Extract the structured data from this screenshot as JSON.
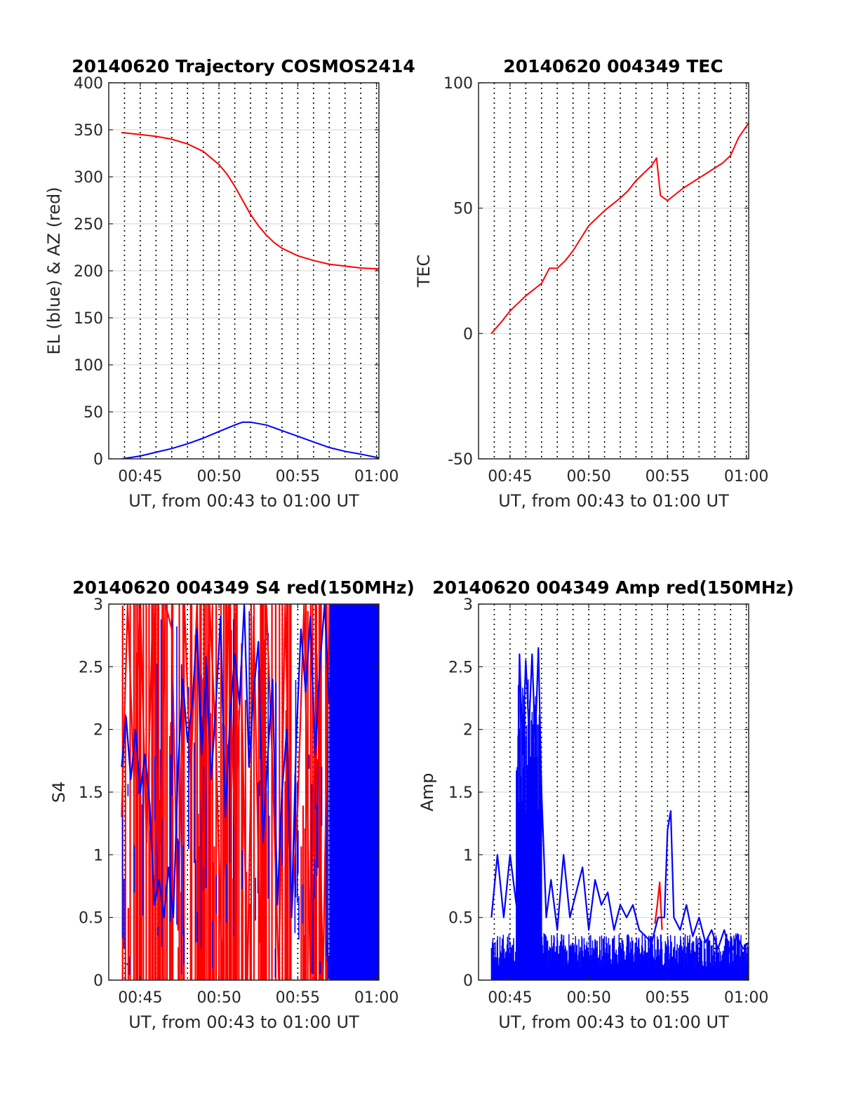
{
  "chart_data": [
    {
      "type": "line",
      "title": "20140620 Trajectory COSMOS2414",
      "xlabel": "UT, from 00:43 to 01:00 UT",
      "ylabel": "EL (blue) & AZ (red)",
      "xlim": [
        0.0,
        17.15
      ],
      "ylim": [
        0,
        400
      ],
      "xticks": [
        2,
        7,
        12,
        17
      ],
      "xtick_labels": [
        "00:45",
        "00:50",
        "00:55",
        "01:00"
      ],
      "yticks": [
        0,
        50,
        100,
        150,
        200,
        250,
        300,
        350,
        400
      ],
      "ytick_labels": [
        "0",
        "50",
        "100",
        "150",
        "200",
        "250",
        "300",
        "350",
        "400"
      ],
      "grid": "dotted vertical lines each minute, light horizontal lines at y ticks",
      "series": [
        {
          "color": "#ff0000",
          "x": [
            0.82,
            2,
            3,
            4,
            5,
            6,
            7,
            7.5,
            8,
            8.5,
            9,
            9.5,
            10,
            10.5,
            11,
            12,
            13,
            14,
            15,
            16,
            17.15
          ],
          "y": [
            347,
            345,
            343,
            340,
            335,
            327,
            313,
            303,
            290,
            275,
            260,
            248,
            238,
            230,
            224,
            216,
            211,
            207,
            205,
            203,
            202
          ]
        },
        {
          "color": "#0000ff",
          "x": [
            0.82,
            2,
            3,
            4,
            5,
            6,
            7,
            8,
            8.5,
            9,
            10,
            11,
            12,
            13,
            14,
            15,
            16,
            17.15
          ],
          "y": [
            0,
            3,
            7,
            11,
            16,
            22,
            29,
            36,
            39,
            39,
            36,
            30,
            24,
            18,
            12,
            8,
            5,
            1
          ]
        }
      ]
    },
    {
      "type": "line",
      "title": "20140620 004349 TEC",
      "xlabel": "UT, from 00:43 to 01:00 UT",
      "ylabel": "TEC",
      "xlim": [
        0.0,
        17.15
      ],
      "ylim": [
        -50,
        100
      ],
      "xticks": [
        2,
        7,
        12,
        17
      ],
      "xtick_labels": [
        "00:45",
        "00:50",
        "00:55",
        "01:00"
      ],
      "yticks": [
        -50,
        0,
        50,
        100
      ],
      "ytick_labels": [
        "-50",
        "0",
        "50",
        "100"
      ],
      "grid": "dotted vertical lines each minute, light horizontal lines at y ticks",
      "series": [
        {
          "color": "#ff0000",
          "x": [
            0.82,
            1.5,
            2,
            3,
            4,
            4.5,
            5,
            5.5,
            6,
            6.5,
            7,
            8,
            9,
            9.5,
            10,
            10.5,
            11,
            11.3,
            11.55,
            12,
            13,
            14,
            15,
            15.5,
            16,
            16.5,
            17.15
          ],
          "y": [
            0,
            5,
            9,
            15,
            20,
            26,
            26,
            29,
            33,
            38,
            43,
            49,
            54,
            57,
            61,
            64,
            67,
            70,
            55,
            53,
            58,
            62,
            66,
            68,
            71,
            78,
            84
          ]
        }
      ]
    },
    {
      "type": "line",
      "title": "20140620 004349 S4 red(150MHz)",
      "xlabel": "UT, from 00:43 to 01:00 UT",
      "ylabel": "S4",
      "xlim": [
        0.0,
        17.15
      ],
      "ylim": [
        0,
        3
      ],
      "xticks": [
        2,
        7,
        12,
        17
      ],
      "xtick_labels": [
        "00:45",
        "00:50",
        "00:55",
        "01:00"
      ],
      "yticks": [
        0,
        0.5,
        1,
        1.5,
        2,
        2.5,
        3
      ],
      "ytick_labels": [
        "0",
        "0.5",
        "1",
        "1.5",
        "2",
        "2.5",
        "3"
      ],
      "grid": "dotted vertical lines each minute, light horizontal lines at y ticks",
      "series": [
        {
          "color": "#ff0000",
          "x": [
            0.82,
            1.2,
            1.6,
            2.0,
            2.4,
            2.8,
            3.2,
            3.6,
            4.0,
            4.4,
            4.8,
            5.2,
            5.6,
            6.0,
            6.4,
            6.8,
            7.2,
            7.6,
            8.0,
            8.4,
            8.8,
            9.2,
            9.6,
            10.0,
            10.4,
            10.8,
            11.2,
            11.6,
            12.0,
            12.4,
            12.8,
            13.2,
            13.6,
            14.0
          ],
          "y": [
            1.3,
            3.0,
            1.6,
            3.0,
            1.1,
            3.0,
            0.6,
            3.0,
            2.8,
            0.4,
            3.0,
            1.6,
            3.0,
            0.9,
            3.0,
            1.9,
            0.0,
            3.0,
            1.2,
            2.5,
            0.0,
            2.9,
            0.3,
            3.0,
            1.7,
            0.0,
            3.0,
            0.5,
            1.4,
            3.0,
            0.0,
            2.6,
            0.0,
            3.0
          ]
        },
        {
          "color": "#0000ff",
          "x": [
            0.82,
            1.1,
            1.4,
            1.7,
            2.0,
            2.3,
            2.6,
            2.9,
            3.2,
            3.5,
            3.8,
            4.1,
            4.4,
            4.7,
            5.0,
            5.3,
            5.6,
            5.9,
            6.2,
            6.5,
            6.8,
            7.1,
            7.4,
            7.7,
            8.0,
            8.3,
            8.6,
            8.9,
            9.2,
            9.5,
            9.8,
            10.1,
            10.4,
            10.7,
            11.0,
            11.3,
            11.6,
            11.9,
            12.2,
            12.5,
            12.8,
            13.1,
            13.4,
            13.7,
            14.0
          ],
          "y": [
            1.7,
            2.1,
            1.6,
            2.0,
            1.5,
            1.8,
            1.4,
            0.6,
            0.8,
            0.5,
            0.9,
            0.5,
            1.7,
            2.4,
            1.9,
            2.2,
            2.8,
            1.8,
            2.5,
            1.6,
            2.2,
            2.9,
            1.3,
            2.1,
            2.6,
            2.2,
            3.0,
            1.7,
            2.3,
            2.7,
            1.1,
            1.8,
            2.4,
            0.6,
            1.5,
            2.0,
            0.5,
            1.9,
            2.8,
            2.3,
            2.9,
            1.8,
            2.5,
            3.0,
            2.2
          ]
        }
      ],
      "dense_block": {
        "color": "#0000ff",
        "x_range": [
          14.0,
          17.15
        ],
        "y_range": [
          0,
          3
        ]
      }
    },
    {
      "type": "line",
      "title": "20140620 004349 Amp red(150MHz)",
      "xlabel": "UT, from 00:43 to 01:00 UT",
      "ylabel": "Amp",
      "xlim": [
        0.0,
        17.15
      ],
      "ylim": [
        0,
        3
      ],
      "xticks": [
        2,
        7,
        12,
        17
      ],
      "xtick_labels": [
        "00:45",
        "00:50",
        "00:55",
        "01:00"
      ],
      "yticks": [
        0,
        0.5,
        1,
        1.5,
        2,
        2.5,
        3
      ],
      "ytick_labels": [
        "0",
        "0.5",
        "1",
        "1.5",
        "2",
        "2.5",
        "3"
      ],
      "grid": "dotted vertical lines each minute, light horizontal lines at y ticks",
      "series": [
        {
          "color": "#ff0000",
          "x": [
            11.2,
            11.35,
            11.5,
            11.65
          ],
          "y": [
            0.45,
            0.6,
            0.78,
            0.4
          ]
        },
        {
          "color": "#0000ff",
          "x": [
            0.82,
            1.2,
            1.6,
            2.0,
            2.4,
            2.6,
            2.8,
            3.0,
            3.2,
            3.4,
            3.6,
            3.8,
            4.0,
            4.3,
            4.6,
            5.0,
            5.4,
            5.8,
            6.2,
            6.6,
            7.0,
            7.4,
            7.8,
            8.2,
            8.6,
            9.0,
            9.4,
            9.8,
            10.2,
            10.6,
            11.0,
            11.4,
            11.8,
            12.0,
            12.2,
            12.4,
            12.8,
            13.2,
            13.6,
            14.0,
            14.4,
            14.8,
            15.2,
            15.6,
            16.0,
            16.4,
            16.8,
            17.15
          ],
          "y": [
            0.5,
            1.0,
            0.5,
            1.0,
            0.6,
            2.6,
            1.8,
            2.55,
            2.0,
            2.6,
            1.9,
            2.65,
            1.5,
            0.5,
            0.8,
            0.4,
            1.0,
            0.5,
            0.7,
            0.9,
            0.4,
            0.8,
            0.6,
            0.7,
            0.4,
            0.6,
            0.5,
            0.6,
            0.4,
            0.35,
            0.3,
            0.5,
            0.5,
            1.2,
            1.35,
            0.5,
            0.4,
            0.6,
            0.35,
            0.5,
            0.3,
            0.4,
            0.25,
            0.4,
            0.2,
            0.35,
            0.25,
            0.3
          ]
        }
      ],
      "noise_floor": {
        "color": "#0000ff",
        "x_range": [
          0.82,
          17.15
        ],
        "baseline": 0.0,
        "level": 0.25
      }
    }
  ]
}
